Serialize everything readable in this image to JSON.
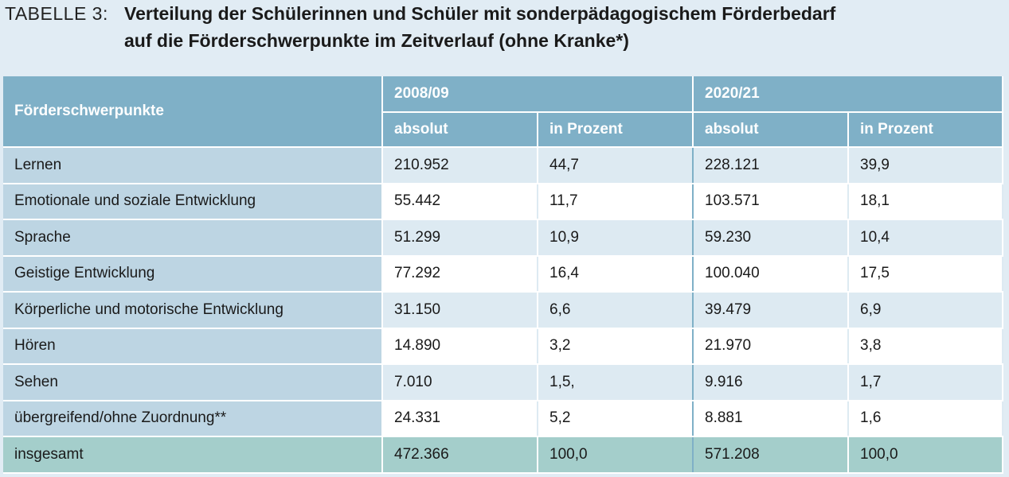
{
  "title": {
    "label": "TABELLE 3:",
    "line1": "Verteilung der Schülerinnen und Schüler mit sonderpädagogischem Förderbedarf",
    "line2": "auf die Förderschwerpunkte im Zeitverlauf (ohne Kranke*)"
  },
  "table": {
    "row_header": "Förderschwerpunkte",
    "years": [
      "2008/09",
      "2020/21"
    ],
    "subheaders": [
      "absolut",
      "in Prozent",
      "absolut",
      "in Prozent"
    ],
    "rows": [
      {
        "label": "Lernen",
        "values": [
          "210.952",
          "44,7",
          "228.121",
          "39,9"
        ]
      },
      {
        "label": "Emotionale und soziale Entwicklung",
        "values": [
          "55.442",
          "11,7",
          "103.571",
          "18,1"
        ]
      },
      {
        "label": "Sprache",
        "values": [
          "51.299",
          "10,9",
          "59.230",
          "10,4"
        ]
      },
      {
        "label": "Geistige Entwicklung",
        "values": [
          "77.292",
          "16,4",
          "100.040",
          "17,5"
        ]
      },
      {
        "label": "Körperliche und motorische Entwicklung",
        "values": [
          "31.150",
          "6,6",
          "39.479",
          "6,9"
        ]
      },
      {
        "label": "Hören",
        "values": [
          "14.890",
          "3,2",
          "21.970",
          "3,8"
        ]
      },
      {
        "label": "Sehen",
        "values": [
          "7.010",
          "1,5,",
          "9.916",
          "1,7"
        ]
      },
      {
        "label": "übergreifend/ohne Zuordnung**",
        "values": [
          "24.331",
          "5,2",
          "8.881",
          "1,6"
        ]
      }
    ],
    "total": {
      "label": "insgesamt",
      "values": [
        "472.366",
        "100,0",
        "571.208",
        "100,0"
      ]
    }
  },
  "colors": {
    "header": "#7fb0c7",
    "label_column": "#bdd5e3",
    "alt_row": "#ddeaf2",
    "total_row": "#a4cecb",
    "background": "#e1ecf4"
  }
}
